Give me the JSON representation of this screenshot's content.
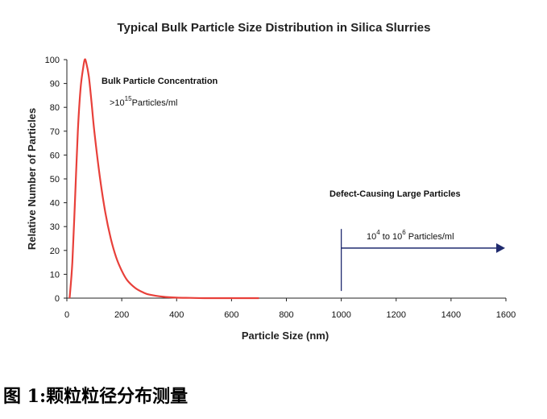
{
  "chart_data": {
    "type": "line",
    "title": "Typical Bulk Particle Size Distribution in Silica Slurries",
    "xlabel": "Particle Size (nm)",
    "ylabel": "Relative Number of Particles",
    "xlim": [
      0,
      1600
    ],
    "ylim": [
      0,
      100
    ],
    "x_ticks": [
      "0",
      "200",
      "400",
      "600",
      "800",
      "1000",
      "1200",
      "1400",
      "1600"
    ],
    "y_ticks": [
      "0",
      "10",
      "20",
      "30",
      "40",
      "50",
      "60",
      "70",
      "80",
      "90",
      "100"
    ],
    "grid": false,
    "legend": "none",
    "series": [
      {
        "color": "#e8403a",
        "x": [
          10,
          20,
          30,
          40,
          50,
          60,
          65,
          70,
          80,
          90,
          100,
          120,
          140,
          160,
          180,
          200,
          220,
          250,
          280,
          300,
          350,
          400,
          450,
          500,
          600,
          700
        ],
        "y": [
          0,
          15,
          42,
          70,
          88,
          97,
          100,
          99,
          93,
          82,
          70,
          51,
          36,
          25,
          17,
          11.5,
          7.5,
          4.2,
          2.3,
          1.5,
          0.6,
          0.2,
          0.1,
          0,
          0,
          0
        ]
      }
    ],
    "annotations": {
      "bulk_title": "Bulk Particle Concentration",
      "bulk_prefix": ">10",
      "bulk_exp": "15",
      "bulk_unit": "Particles/ml",
      "defect_title": "Defect-Causing Large Particles",
      "defect_base1": "10",
      "defect_exp1": "4",
      "defect_mid": " to 10",
      "defect_exp2": "6",
      "defect_unit": "Particles/ml",
      "arrow_from_x": 1000,
      "arrow_to_x": 1600,
      "arrow_y": 21,
      "marker_x": 1000,
      "marker_y_range": [
        3,
        29
      ],
      "arrow_color": "#1f2a6e"
    }
  },
  "caption": "图 1:颗粒粒径分布测量"
}
